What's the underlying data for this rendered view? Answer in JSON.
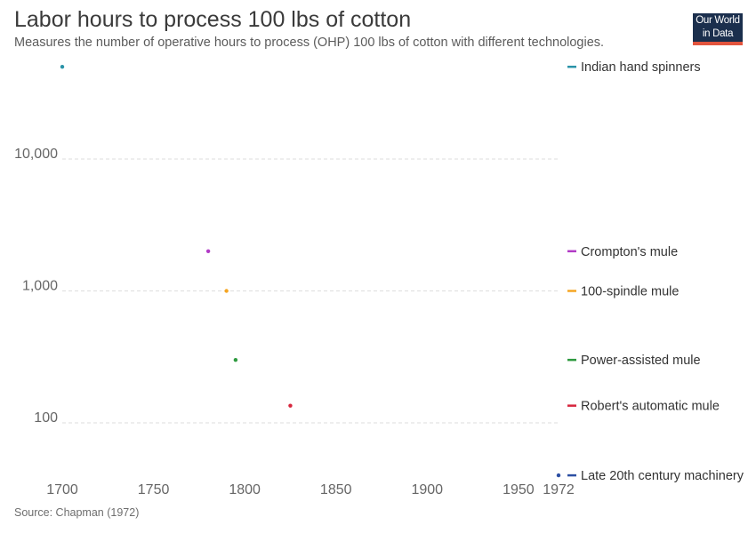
{
  "header": {
    "title": "Labor hours to process 100 lbs of cotton",
    "subtitle": "Measures the number of operative hours to process (OHP) 100 lbs of cotton with different technologies."
  },
  "logo": {
    "line1": "Our World",
    "line2": "in Data"
  },
  "footer": {
    "source": "Source: Chapman (1972)"
  },
  "chart_data": {
    "type": "scatter",
    "title": "Labor hours to process 100 lbs of cotton",
    "subtitle": "Measures the number of operative hours to process (OHP) 100 lbs of cotton with different technologies.",
    "x_ticks": [
      1700,
      1750,
      1800,
      1850,
      1900,
      1950,
      1972
    ],
    "x_tick_labels": [
      "1700",
      "1750",
      "1800",
      "1850",
      "1900",
      "1950",
      "1972"
    ],
    "y_ticks": [
      100,
      1000,
      10000
    ],
    "y_tick_labels": [
      "100",
      "1,000",
      "10,000"
    ],
    "y_scale": "log",
    "xlim": [
      1700,
      1972
    ],
    "ylim": [
      40,
      50000
    ],
    "grid": "horizontal dashed",
    "legend": "right, labels at series values",
    "series": [
      {
        "name": "Indian hand spinners",
        "color": "#2a93a8",
        "x": 1700,
        "y": 50000
      },
      {
        "name": "Crompton's mule",
        "color": "#b13bc6",
        "x": 1780,
        "y": 2000
      },
      {
        "name": "100-spindle mule",
        "color": "#f5a623",
        "x": 1790,
        "y": 1000
      },
      {
        "name": "Power-assisted mule",
        "color": "#2e9a3f",
        "x": 1795,
        "y": 300
      },
      {
        "name": "Robert's automatic mule",
        "color": "#d7263d",
        "x": 1825,
        "y": 135
      },
      {
        "name": "Late 20th century machinery",
        "color": "#2d4fa3",
        "x": 1972,
        "y": 40
      }
    ]
  }
}
